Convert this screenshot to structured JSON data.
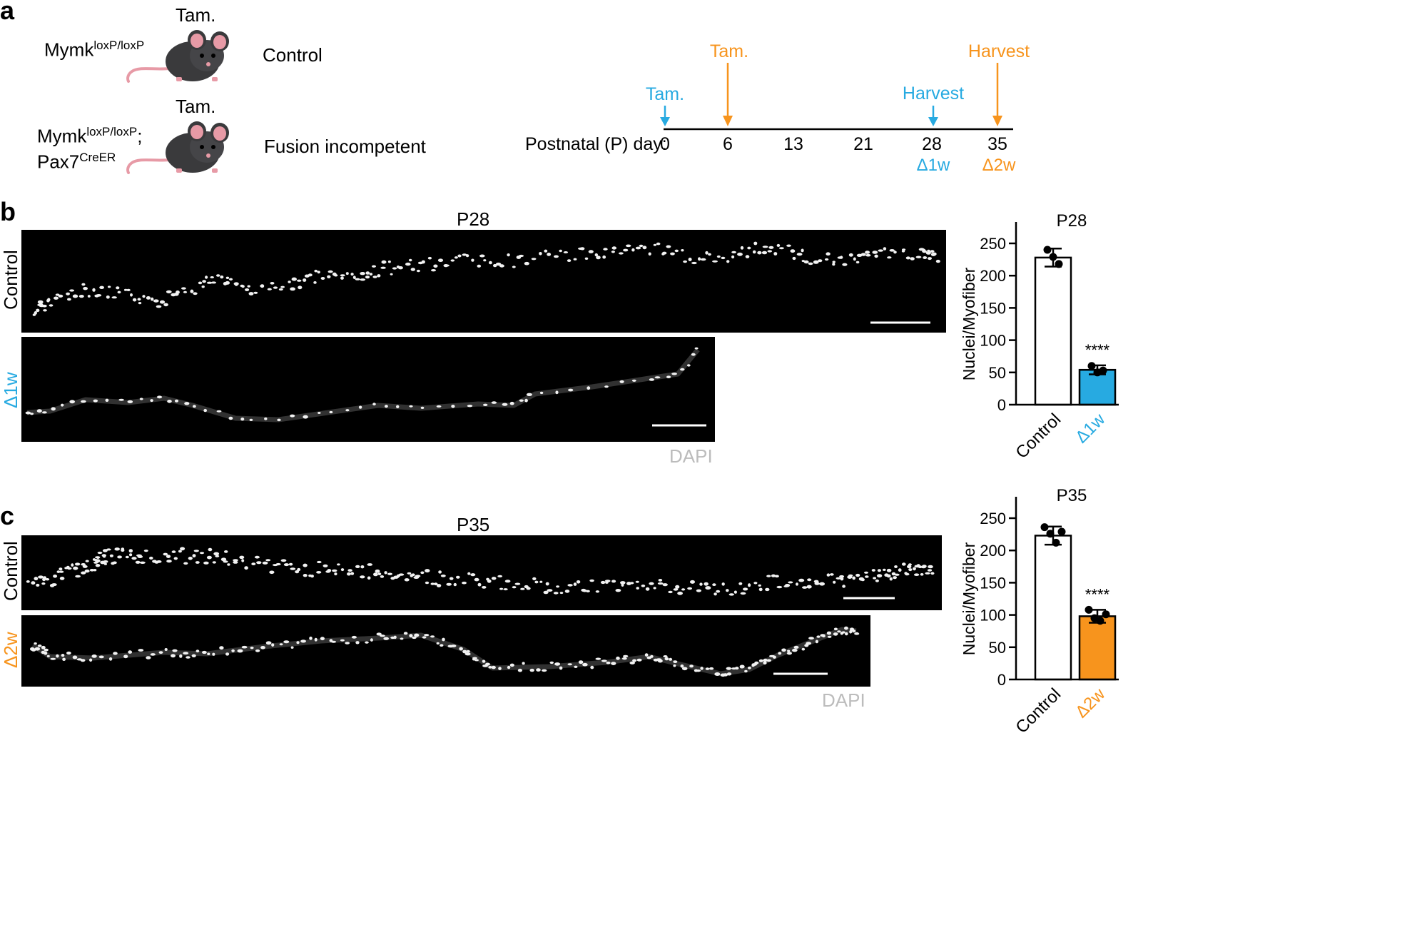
{
  "panel_a": {
    "letter": "a",
    "tam_label_1": "Tam.",
    "tam_label_2": "Tam.",
    "genotype_1_base": "Mymk",
    "genotype_1_sup": "loxP/loxP",
    "genotype_2_base": "Mymk",
    "genotype_2_sup": "loxP/loxP",
    "genotype_2_sep": ";",
    "genotype_2b_base": "Pax7",
    "genotype_2b_sup": "CreER",
    "group_1": "Control",
    "group_2": "Fusion incompetent",
    "timeline": {
      "axis_label": "Postnatal (P) day:",
      "days": [
        "0",
        "6",
        "13",
        "21",
        "28",
        "35"
      ],
      "tam_cyan": "Tam.",
      "tam_orange": "Tam.",
      "harvest_cyan": "Harvest",
      "harvest_orange": "Harvest",
      "delta_cyan": "Δ1w",
      "delta_orange": "Δ2w"
    }
  },
  "panel_b": {
    "letter": "b",
    "title": "P28",
    "row_1_label": "Control",
    "row_2_label": "Δ1w",
    "stain_label": "DAPI"
  },
  "panel_c": {
    "letter": "c",
    "title": "P35",
    "row_1_label": "Control",
    "row_2_label": "Δ2w",
    "stain_label": "DAPI"
  },
  "colors": {
    "cyan": "#27aae1",
    "orange": "#f7941d",
    "mouse": "#3a3a3c",
    "ear": "#e79aa6"
  },
  "chart_data": [
    {
      "type": "bar",
      "title": "P28",
      "ylabel": "Nuclei/Myofiber",
      "categories": [
        "Control",
        "Δ1w"
      ],
      "values": [
        228,
        54
      ],
      "errors": [
        14,
        7
      ],
      "points": [
        [
          240,
          229,
          218
        ],
        [
          60,
          50,
          53
        ]
      ],
      "colors": [
        "#ffffff",
        "#27aae1"
      ],
      "ylim": [
        0,
        250
      ],
      "yticks": [
        0,
        50,
        100,
        150,
        200,
        250
      ],
      "annotation": "****"
    },
    {
      "type": "bar",
      "title": "P35",
      "ylabel": "Nuclei/Myofiber",
      "categories": [
        "Control",
        "Δ2w"
      ],
      "values": [
        223,
        98
      ],
      "errors": [
        14,
        10
      ],
      "points": [
        [
          236,
          226,
          212,
          229
        ],
        [
          108,
          95,
          91,
          101
        ]
      ],
      "colors": [
        "#ffffff",
        "#f7941d"
      ],
      "ylim": [
        0,
        250
      ],
      "yticks": [
        0,
        50,
        100,
        150,
        200,
        250
      ],
      "annotation": "****"
    }
  ]
}
